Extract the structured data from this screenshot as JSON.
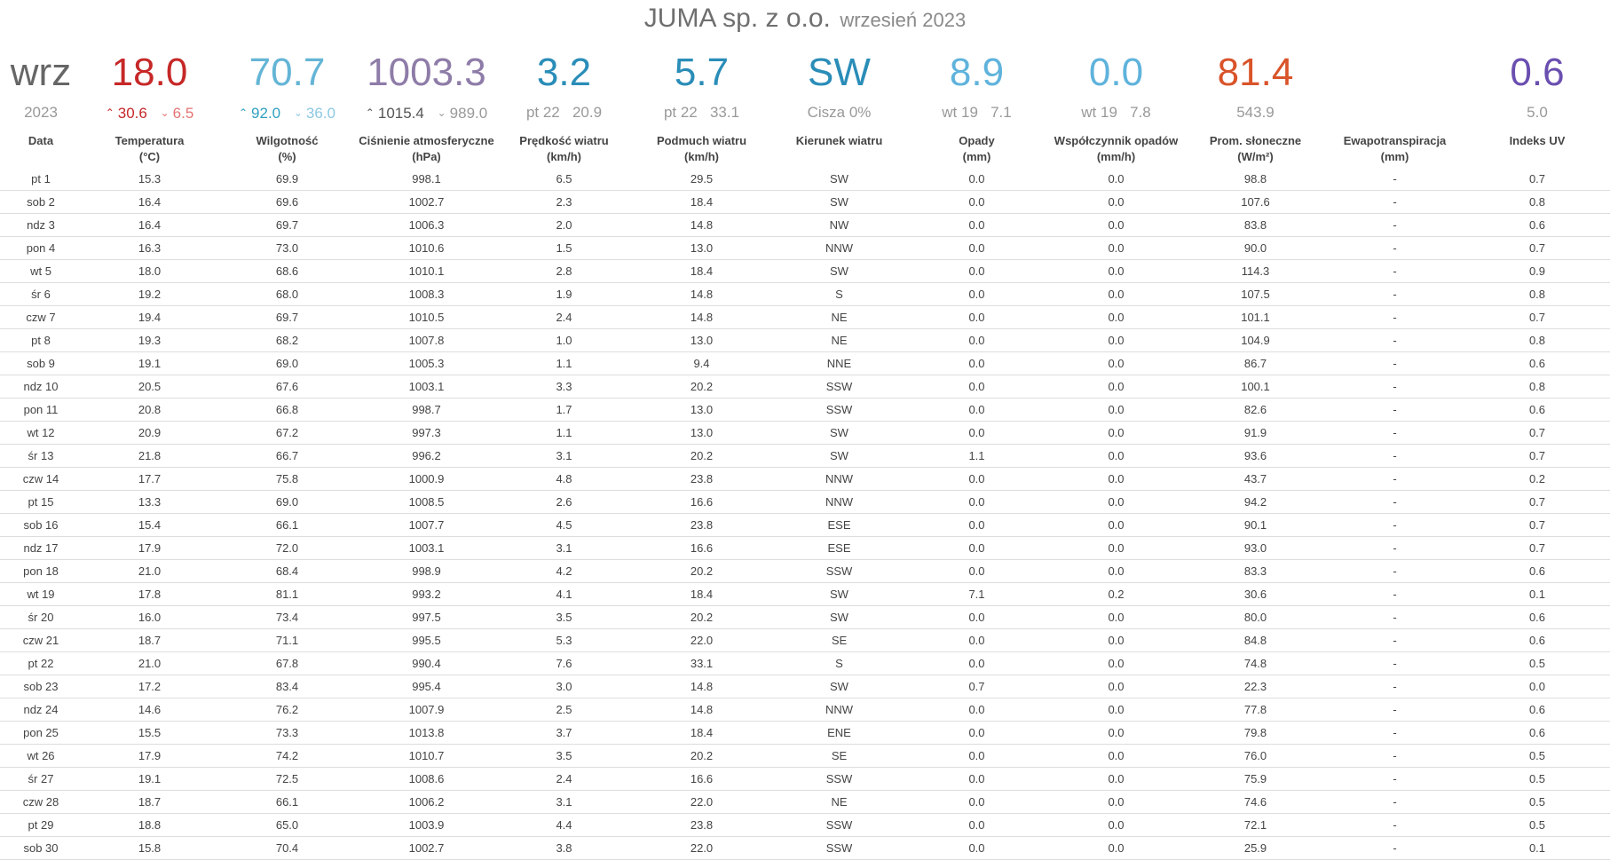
{
  "header": {
    "company": "JUMA sp. z o.o.",
    "period": "wrzesień 2023"
  },
  "colors": {
    "temperature": "#c62828",
    "temp_min": "#e57373",
    "humidity": "#64b5d6",
    "humidity_max": "#2fa0c0",
    "pressure": "#8e7ca8",
    "wind": "#2a8db8",
    "rain": "#5fb3dc",
    "solar": "#d9542a",
    "uv": "#6a4fb0",
    "muted": "#999999"
  },
  "summary": {
    "month": {
      "value": "wrz",
      "sub": "2023"
    },
    "temperature": {
      "value": "18.0",
      "max": "30.6",
      "min": "6.5"
    },
    "humidity": {
      "value": "70.7",
      "max": "92.0",
      "min": "36.0"
    },
    "pressure": {
      "value": "1003.3",
      "max": "1015.4",
      "min": "989.0"
    },
    "wind_speed": {
      "value": "3.2",
      "sub_day": "pt 22",
      "sub_val": "20.9"
    },
    "wind_gust": {
      "value": "5.7",
      "sub_day": "pt 22",
      "sub_val": "33.1"
    },
    "wind_dir": {
      "value": "SW",
      "sub": "Cisza 0%"
    },
    "rain": {
      "value": "8.9",
      "sub_day": "wt 19",
      "sub_val": "7.1"
    },
    "rain_rate": {
      "value": "0.0",
      "sub_day": "wt 19",
      "sub_val": "7.8"
    },
    "solar": {
      "value": "81.4",
      "sub": "543.9"
    },
    "et": {
      "value": "",
      "sub": ""
    },
    "uv": {
      "value": "0.6",
      "sub": "5.0"
    }
  },
  "columns": [
    [
      "Data",
      ""
    ],
    [
      "Temperatura",
      "(°C)"
    ],
    [
      "Wilgotność",
      "(%)"
    ],
    [
      "Ciśnienie atmosferyczne",
      "(hPa)"
    ],
    [
      "Prędkość wiatru",
      "(km/h)"
    ],
    [
      "Podmuch wiatru",
      "(km/h)"
    ],
    [
      "Kierunek wiatru",
      ""
    ],
    [
      "Opady",
      "(mm)"
    ],
    [
      "Współczynnik opadów",
      "(mm/h)"
    ],
    [
      "Prom. słoneczne",
      "(W/m²)"
    ],
    [
      "Ewapotranspiracja",
      "(mm)"
    ],
    [
      "Indeks UV",
      ""
    ]
  ],
  "rows": [
    [
      "pt 1",
      "15.3",
      "69.9",
      "998.1",
      "6.5",
      "29.5",
      "SW",
      "0.0",
      "0.0",
      "98.8",
      "-",
      "0.7"
    ],
    [
      "sob 2",
      "16.4",
      "69.6",
      "1002.7",
      "2.3",
      "18.4",
      "SW",
      "0.0",
      "0.0",
      "107.6",
      "-",
      "0.8"
    ],
    [
      "ndz 3",
      "16.4",
      "69.7",
      "1006.3",
      "2.0",
      "14.8",
      "NW",
      "0.0",
      "0.0",
      "83.8",
      "-",
      "0.6"
    ],
    [
      "pon 4",
      "16.3",
      "73.0",
      "1010.6",
      "1.5",
      "13.0",
      "NNW",
      "0.0",
      "0.0",
      "90.0",
      "-",
      "0.7"
    ],
    [
      "wt 5",
      "18.0",
      "68.6",
      "1010.1",
      "2.8",
      "18.4",
      "SW",
      "0.0",
      "0.0",
      "114.3",
      "-",
      "0.9"
    ],
    [
      "śr 6",
      "19.2",
      "68.0",
      "1008.3",
      "1.9",
      "14.8",
      "S",
      "0.0",
      "0.0",
      "107.5",
      "-",
      "0.8"
    ],
    [
      "czw 7",
      "19.4",
      "69.7",
      "1010.5",
      "2.4",
      "14.8",
      "NE",
      "0.0",
      "0.0",
      "101.1",
      "-",
      "0.7"
    ],
    [
      "pt 8",
      "19.3",
      "68.2",
      "1007.8",
      "1.0",
      "13.0",
      "NE",
      "0.0",
      "0.0",
      "104.9",
      "-",
      "0.8"
    ],
    [
      "sob 9",
      "19.1",
      "69.0",
      "1005.3",
      "1.1",
      "9.4",
      "NNE",
      "0.0",
      "0.0",
      "86.7",
      "-",
      "0.6"
    ],
    [
      "ndz 10",
      "20.5",
      "67.6",
      "1003.1",
      "3.3",
      "20.2",
      "SSW",
      "0.0",
      "0.0",
      "100.1",
      "-",
      "0.8"
    ],
    [
      "pon 11",
      "20.8",
      "66.8",
      "998.7",
      "1.7",
      "13.0",
      "SSW",
      "0.0",
      "0.0",
      "82.6",
      "-",
      "0.6"
    ],
    [
      "wt 12",
      "20.9",
      "67.2",
      "997.3",
      "1.1",
      "13.0",
      "SW",
      "0.0",
      "0.0",
      "91.9",
      "-",
      "0.7"
    ],
    [
      "śr 13",
      "21.8",
      "66.7",
      "996.2",
      "3.1",
      "20.2",
      "SW",
      "1.1",
      "0.0",
      "93.6",
      "-",
      "0.7"
    ],
    [
      "czw 14",
      "17.7",
      "75.8",
      "1000.9",
      "4.8",
      "23.8",
      "NNW",
      "0.0",
      "0.0",
      "43.7",
      "-",
      "0.2"
    ],
    [
      "pt 15",
      "13.3",
      "69.0",
      "1008.5",
      "2.6",
      "16.6",
      "NNW",
      "0.0",
      "0.0",
      "94.2",
      "-",
      "0.7"
    ],
    [
      "sob 16",
      "15.4",
      "66.1",
      "1007.7",
      "4.5",
      "23.8",
      "ESE",
      "0.0",
      "0.0",
      "90.1",
      "-",
      "0.7"
    ],
    [
      "ndz 17",
      "17.9",
      "72.0",
      "1003.1",
      "3.1",
      "16.6",
      "ESE",
      "0.0",
      "0.0",
      "93.0",
      "-",
      "0.7"
    ],
    [
      "pon 18",
      "21.0",
      "68.4",
      "998.9",
      "4.2",
      "20.2",
      "SSW",
      "0.0",
      "0.0",
      "83.3",
      "-",
      "0.6"
    ],
    [
      "wt 19",
      "17.8",
      "81.1",
      "993.2",
      "4.1",
      "18.4",
      "SW",
      "7.1",
      "0.2",
      "30.6",
      "-",
      "0.1"
    ],
    [
      "śr 20",
      "16.0",
      "73.4",
      "997.5",
      "3.5",
      "20.2",
      "SW",
      "0.0",
      "0.0",
      "80.0",
      "-",
      "0.6"
    ],
    [
      "czw 21",
      "18.7",
      "71.1",
      "995.5",
      "5.3",
      "22.0",
      "SE",
      "0.0",
      "0.0",
      "84.8",
      "-",
      "0.6"
    ],
    [
      "pt 22",
      "21.0",
      "67.8",
      "990.4",
      "7.6",
      "33.1",
      "S",
      "0.0",
      "0.0",
      "74.8",
      "-",
      "0.5"
    ],
    [
      "sob 23",
      "17.2",
      "83.4",
      "995.4",
      "3.0",
      "14.8",
      "SW",
      "0.7",
      "0.0",
      "22.3",
      "-",
      "0.0"
    ],
    [
      "ndz 24",
      "14.6",
      "76.2",
      "1007.9",
      "2.5",
      "14.8",
      "NNW",
      "0.0",
      "0.0",
      "77.8",
      "-",
      "0.6"
    ],
    [
      "pon 25",
      "15.5",
      "73.3",
      "1013.8",
      "3.7",
      "18.4",
      "ENE",
      "0.0",
      "0.0",
      "79.8",
      "-",
      "0.6"
    ],
    [
      "wt 26",
      "17.9",
      "74.2",
      "1010.7",
      "3.5",
      "20.2",
      "SE",
      "0.0",
      "0.0",
      "76.0",
      "-",
      "0.5"
    ],
    [
      "śr 27",
      "19.1",
      "72.5",
      "1008.6",
      "2.4",
      "16.6",
      "SSW",
      "0.0",
      "0.0",
      "75.9",
      "-",
      "0.5"
    ],
    [
      "czw 28",
      "18.7",
      "66.1",
      "1006.2",
      "3.1",
      "22.0",
      "NE",
      "0.0",
      "0.0",
      "74.6",
      "-",
      "0.5"
    ],
    [
      "pt 29",
      "18.8",
      "65.0",
      "1003.9",
      "4.4",
      "23.8",
      "SSW",
      "0.0",
      "0.0",
      "72.1",
      "-",
      "0.5"
    ],
    [
      "sob 30",
      "15.8",
      "70.4",
      "1002.7",
      "3.8",
      "22.0",
      "SSW",
      "0.0",
      "0.0",
      "25.9",
      "-",
      "0.1"
    ]
  ]
}
